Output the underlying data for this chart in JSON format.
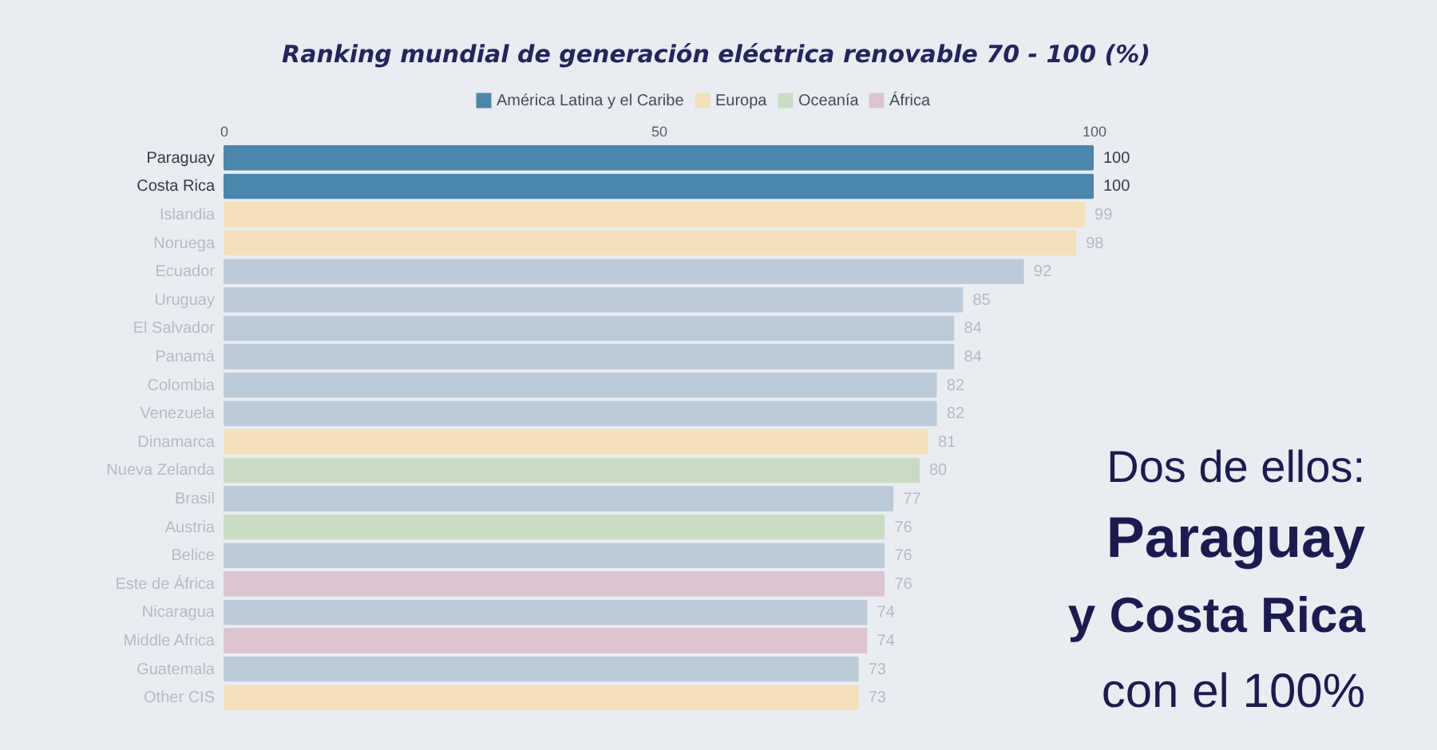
{
  "chart_data": {
    "type": "bar",
    "orientation": "horizontal",
    "stacked": true,
    "data_labels": true,
    "legend": "top",
    "title": "Ranking mundial de generación eléctrica renovable 70 - 100 (%)",
    "categories": [
      "Paraguay",
      "Costa Rica",
      "Islandia",
      "Noruega",
      "Ecuador",
      "Uruguay",
      "El Salvador",
      "Panamá",
      "Colombia",
      "Venezuela",
      "Dinamarca",
      "Nueva Zelanda",
      "Brasil",
      "Austria",
      "Belice",
      "Este de África",
      "Nicaragua",
      "Middle Africa",
      "Guatemala",
      "Other CIS"
    ],
    "xlim": [
      0,
      100
    ],
    "xticks": [
      0,
      50,
      100
    ],
    "series": [
      {
        "name": "América Latina y el Caribe",
        "color": "#4a86ad",
        "values": [
          100,
          100,
          null,
          null,
          92,
          85,
          84,
          84,
          82,
          82,
          null,
          null,
          77,
          null,
          76,
          null,
          74,
          null,
          73,
          null
        ],
        "colors": [
          "#4a86ad",
          "#4a86ad",
          null,
          null,
          "#bccbd9",
          "#bccbd9",
          "#bccbd9",
          "#bccbd9",
          "#bccbd9",
          "#bccbd9",
          null,
          null,
          "#bccbd9",
          null,
          "#bccbd9",
          null,
          "#bccbd9",
          null,
          "#bccbd9",
          null
        ]
      },
      {
        "name": "Europa",
        "color": "#f5dfb9",
        "values": [
          null,
          null,
          99,
          98,
          null,
          null,
          null,
          null,
          null,
          null,
          81,
          null,
          null,
          null,
          null,
          null,
          null,
          null,
          null,
          73
        ]
      },
      {
        "name": "Oceanía",
        "color": "#c9dcc3",
        "values": [
          null,
          null,
          null,
          null,
          null,
          null,
          null,
          null,
          null,
          null,
          null,
          80,
          null,
          76,
          null,
          null,
          null,
          null,
          null,
          null
        ]
      },
      {
        "name": "África",
        "color": "#dcc3cf",
        "values": [
          null,
          null,
          null,
          null,
          null,
          null,
          null,
          null,
          null,
          null,
          null,
          null,
          null,
          null,
          null,
          76,
          null,
          74,
          null,
          null
        ]
      }
    ],
    "annotations": [
      "Dos de ellos:",
      "Paraguay",
      "y Costa Rica",
      "con el 100%"
    ]
  }
}
